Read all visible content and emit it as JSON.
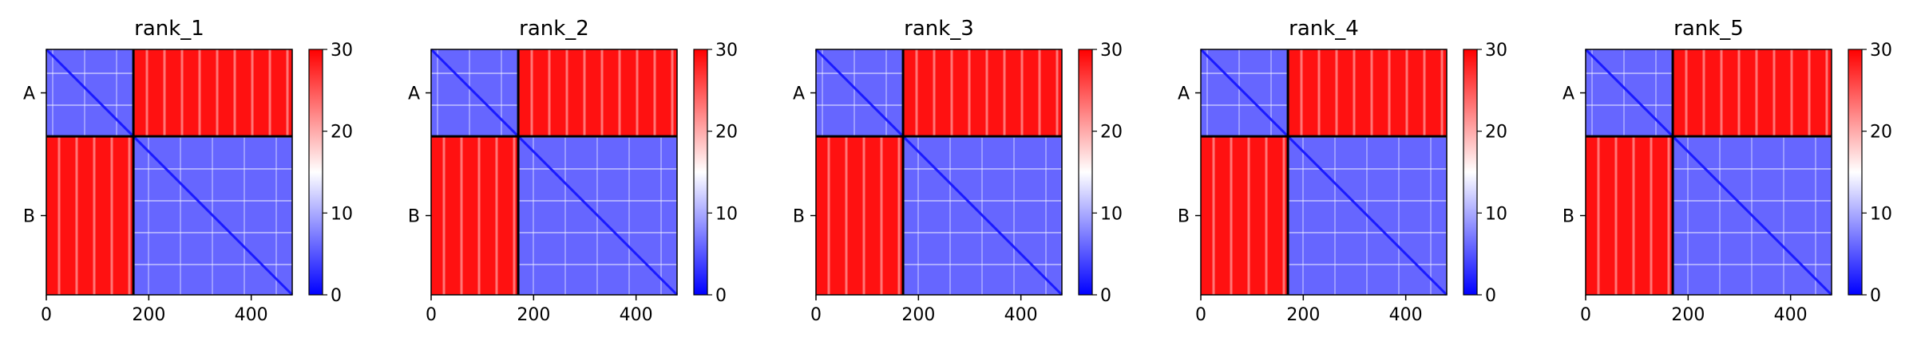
{
  "figure": {
    "panel_titles": [
      "rank_1",
      "rank_2",
      "rank_3",
      "rank_4",
      "rank_5"
    ]
  },
  "chart_data": [
    {
      "type": "heatmap",
      "title": "rank_1",
      "x_ticks": [
        0,
        200,
        400
      ],
      "y_tick_labels": [
        "A",
        "B"
      ],
      "chain_lengths": {
        "A": 170,
        "B": 310
      },
      "xlim": [
        0,
        480
      ],
      "colorbar": {
        "ticks": [
          0,
          10,
          20,
          30
        ],
        "range": [
          0,
          30
        ],
        "colormap": "bwr"
      },
      "blocks": [
        {
          "rows": "A",
          "cols": "A",
          "typical_value": 8
        },
        {
          "rows": "A",
          "cols": "B",
          "typical_value": 30
        },
        {
          "rows": "B",
          "cols": "A",
          "typical_value": 29
        },
        {
          "rows": "B",
          "cols": "B",
          "typical_value": 6
        }
      ]
    },
    {
      "type": "heatmap",
      "title": "rank_2",
      "x_ticks": [
        0,
        200,
        400
      ],
      "y_tick_labels": [
        "A",
        "B"
      ],
      "chain_lengths": {
        "A": 170,
        "B": 310
      },
      "xlim": [
        0,
        480
      ],
      "colorbar": {
        "ticks": [
          0,
          10,
          20,
          30
        ],
        "range": [
          0,
          30
        ],
        "colormap": "bwr"
      },
      "blocks": [
        {
          "rows": "A",
          "cols": "A",
          "typical_value": 8
        },
        {
          "rows": "A",
          "cols": "B",
          "typical_value": 30
        },
        {
          "rows": "B",
          "cols": "A",
          "typical_value": 29
        },
        {
          "rows": "B",
          "cols": "B",
          "typical_value": 6
        }
      ]
    },
    {
      "type": "heatmap",
      "title": "rank_3",
      "x_ticks": [
        0,
        200,
        400
      ],
      "y_tick_labels": [
        "A",
        "B"
      ],
      "chain_lengths": {
        "A": 170,
        "B": 310
      },
      "xlim": [
        0,
        480
      ],
      "colorbar": {
        "ticks": [
          0,
          10,
          20,
          30
        ],
        "range": [
          0,
          30
        ],
        "colormap": "bwr"
      },
      "blocks": [
        {
          "rows": "A",
          "cols": "A",
          "typical_value": 8
        },
        {
          "rows": "A",
          "cols": "B",
          "typical_value": 30
        },
        {
          "rows": "B",
          "cols": "A",
          "typical_value": 29
        },
        {
          "rows": "B",
          "cols": "B",
          "typical_value": 6
        }
      ]
    },
    {
      "type": "heatmap",
      "title": "rank_4",
      "x_ticks": [
        0,
        200,
        400
      ],
      "y_tick_labels": [
        "A",
        "B"
      ],
      "chain_lengths": {
        "A": 170,
        "B": 310
      },
      "xlim": [
        0,
        480
      ],
      "colorbar": {
        "ticks": [
          0,
          10,
          20,
          30
        ],
        "range": [
          0,
          30
        ],
        "colormap": "bwr"
      },
      "blocks": [
        {
          "rows": "A",
          "cols": "A",
          "typical_value": 8
        },
        {
          "rows": "A",
          "cols": "B",
          "typical_value": 30
        },
        {
          "rows": "B",
          "cols": "A",
          "typical_value": 29
        },
        {
          "rows": "B",
          "cols": "B",
          "typical_value": 6
        }
      ]
    },
    {
      "type": "heatmap",
      "title": "rank_5",
      "x_ticks": [
        0,
        200,
        400
      ],
      "y_tick_labels": [
        "A",
        "B"
      ],
      "chain_lengths": {
        "A": 170,
        "B": 310
      },
      "xlim": [
        0,
        480
      ],
      "colorbar": {
        "ticks": [
          0,
          10,
          20,
          30
        ],
        "range": [
          0,
          30
        ],
        "colormap": "bwr"
      },
      "blocks": [
        {
          "rows": "A",
          "cols": "A",
          "typical_value": 8
        },
        {
          "rows": "A",
          "cols": "B",
          "typical_value": 30
        },
        {
          "rows": "B",
          "cols": "A",
          "typical_value": 29
        },
        {
          "rows": "B",
          "cols": "B",
          "typical_value": 6
        }
      ]
    }
  ],
  "colors": {
    "low": "#0000ff",
    "mid": "#ffffff",
    "high": "#ff0000",
    "divider": "#000000"
  }
}
